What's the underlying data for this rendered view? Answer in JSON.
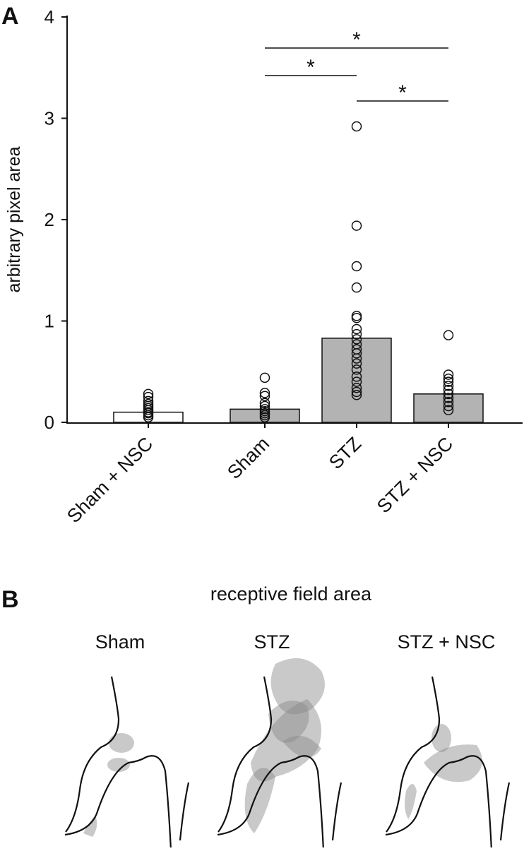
{
  "panel_a": {
    "label": "A"
  },
  "chart_data": {
    "type": "bar",
    "ylabel": "arbitrary pixel area",
    "categories": [
      "Sham + NSC",
      "Sham",
      "STZ",
      "STZ + NSC"
    ],
    "values": [
      0.1,
      0.13,
      0.83,
      0.28
    ],
    "colors": [
      "#ffffff",
      "#b3b3b3",
      "#b3b3b3",
      "#b3b3b3"
    ],
    "points": [
      [
        0.05,
        0.07,
        0.09,
        0.1,
        0.12,
        0.14,
        0.16,
        0.18,
        0.21,
        0.25,
        0.28
      ],
      [
        0.44,
        0.29,
        0.26,
        0.19,
        0.16,
        0.13,
        0.11,
        0.09,
        0.07,
        0.05
      ],
      [
        2.92,
        1.94,
        1.54,
        1.33,
        1.05,
        1.03,
        0.92,
        0.87,
        0.82,
        0.77,
        0.72,
        0.68,
        0.63,
        0.58,
        0.52,
        0.45,
        0.4,
        0.34,
        0.3,
        0.27
      ],
      [
        0.86,
        0.47,
        0.43,
        0.4,
        0.36,
        0.32,
        0.28,
        0.24,
        0.2,
        0.16,
        0.12
      ]
    ],
    "ylim": [
      0,
      4
    ],
    "yticks": [
      0,
      1,
      2,
      3,
      4
    ],
    "comparisons": [
      {
        "between": [
          1,
          3
        ],
        "label": "*"
      },
      {
        "between": [
          1,
          2
        ],
        "label": "*"
      },
      {
        "between": [
          2,
          3
        ],
        "label": "*"
      }
    ]
  },
  "panel_b": {
    "label": "B",
    "title": "receptive field area",
    "groups": [
      "Sham",
      "STZ",
      "STZ + NSC"
    ]
  }
}
